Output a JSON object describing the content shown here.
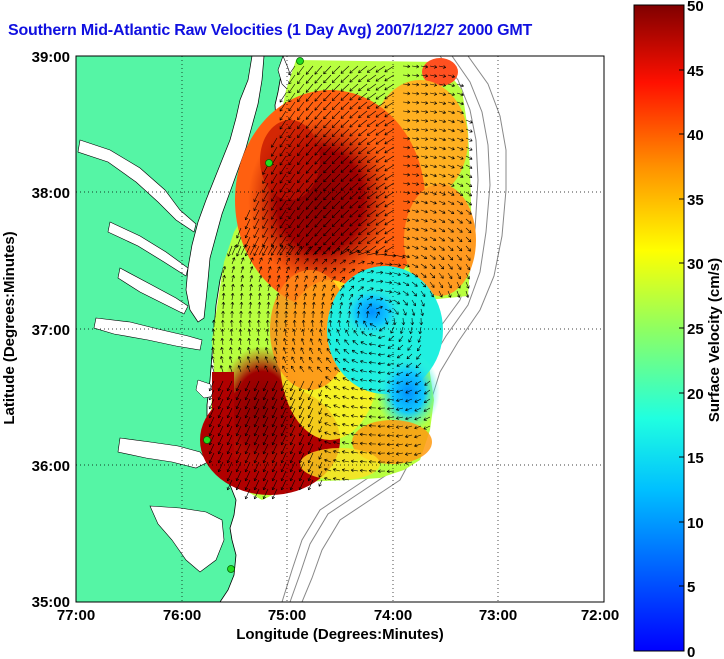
{
  "title": "Southern Mid-Atlantic Raw Velocities (1 Day Avg) 2007/12/27 2000 GMT",
  "xlabel": "Longitude (Degrees:Minutes)",
  "ylabel": "Latitude (Degrees:Minutes)",
  "colorbar_label": "Surface Velocity (cm/s)",
  "x_ticks": [
    "77:00",
    "76:00",
    "75:00",
    "74:00",
    "73:00",
    "72:00"
  ],
  "y_ticks": [
    "39:00",
    "38:00",
    "37:00",
    "36:00",
    "35:00"
  ],
  "colorbar_ticks": [
    "50",
    "45",
    "40",
    "35",
    "30",
    "25",
    "20",
    "15",
    "10",
    "5",
    "0"
  ],
  "colors": {
    "land": "#55f5a5",
    "title": "#1010e0",
    "station": "#22dd22"
  },
  "chart_data": {
    "type": "map",
    "xlim_deg": [
      -77,
      -72
    ],
    "ylim_deg": [
      35,
      39
    ],
    "colorbar_range": [
      0,
      50
    ],
    "grid": true,
    "stations_lon_lat": [
      [
        -74.87,
        38.93
      ],
      [
        -75.15,
        38.22
      ],
      [
        -75.75,
        36.18
      ],
      [
        -75.52,
        35.25
      ]
    ]
  }
}
